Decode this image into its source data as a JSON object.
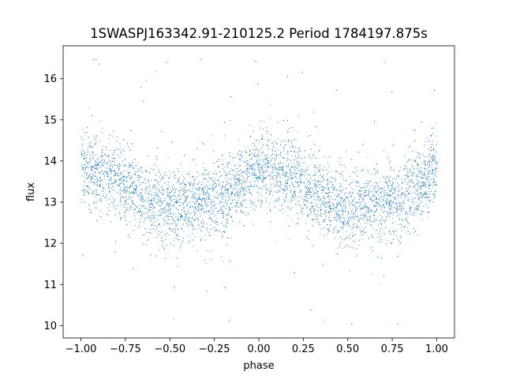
{
  "chart_data": {
    "type": "scatter",
    "title": "1SWASPJ163342.91-210125.2 Period 1784197.875s",
    "xlabel": "phase",
    "ylabel": "flux",
    "xlim": [
      -1.1,
      1.1
    ],
    "ylim": [
      9.7,
      16.8
    ],
    "xticks": [
      -1.0,
      -0.75,
      -0.5,
      -0.25,
      0.0,
      0.25,
      0.5,
      0.75,
      1.0
    ],
    "xtick_labels": [
      "−1.00",
      "−0.75",
      "−0.50",
      "−0.25",
      "0.00",
      "0.25",
      "0.50",
      "0.75",
      "1.00"
    ],
    "yticks": [
      10,
      11,
      12,
      13,
      14,
      15,
      16
    ],
    "ytick_labels": [
      "10",
      "11",
      "12",
      "13",
      "14",
      "15",
      "16"
    ],
    "grid": false,
    "legend": "none",
    "marker_color": "#1f77b4",
    "phase_range": [
      -1.0,
      1.0
    ],
    "flux_profile": {
      "phase": [
        0.0,
        0.1,
        0.2,
        0.3,
        0.4,
        0.5,
        0.6,
        0.7,
        0.8,
        0.9,
        1.0
      ],
      "median_flux": [
        13.9,
        13.7,
        13.6,
        13.3,
        13.0,
        12.85,
        12.95,
        13.0,
        13.1,
        13.4,
        13.9
      ],
      "spread": 0.45
    }
  }
}
